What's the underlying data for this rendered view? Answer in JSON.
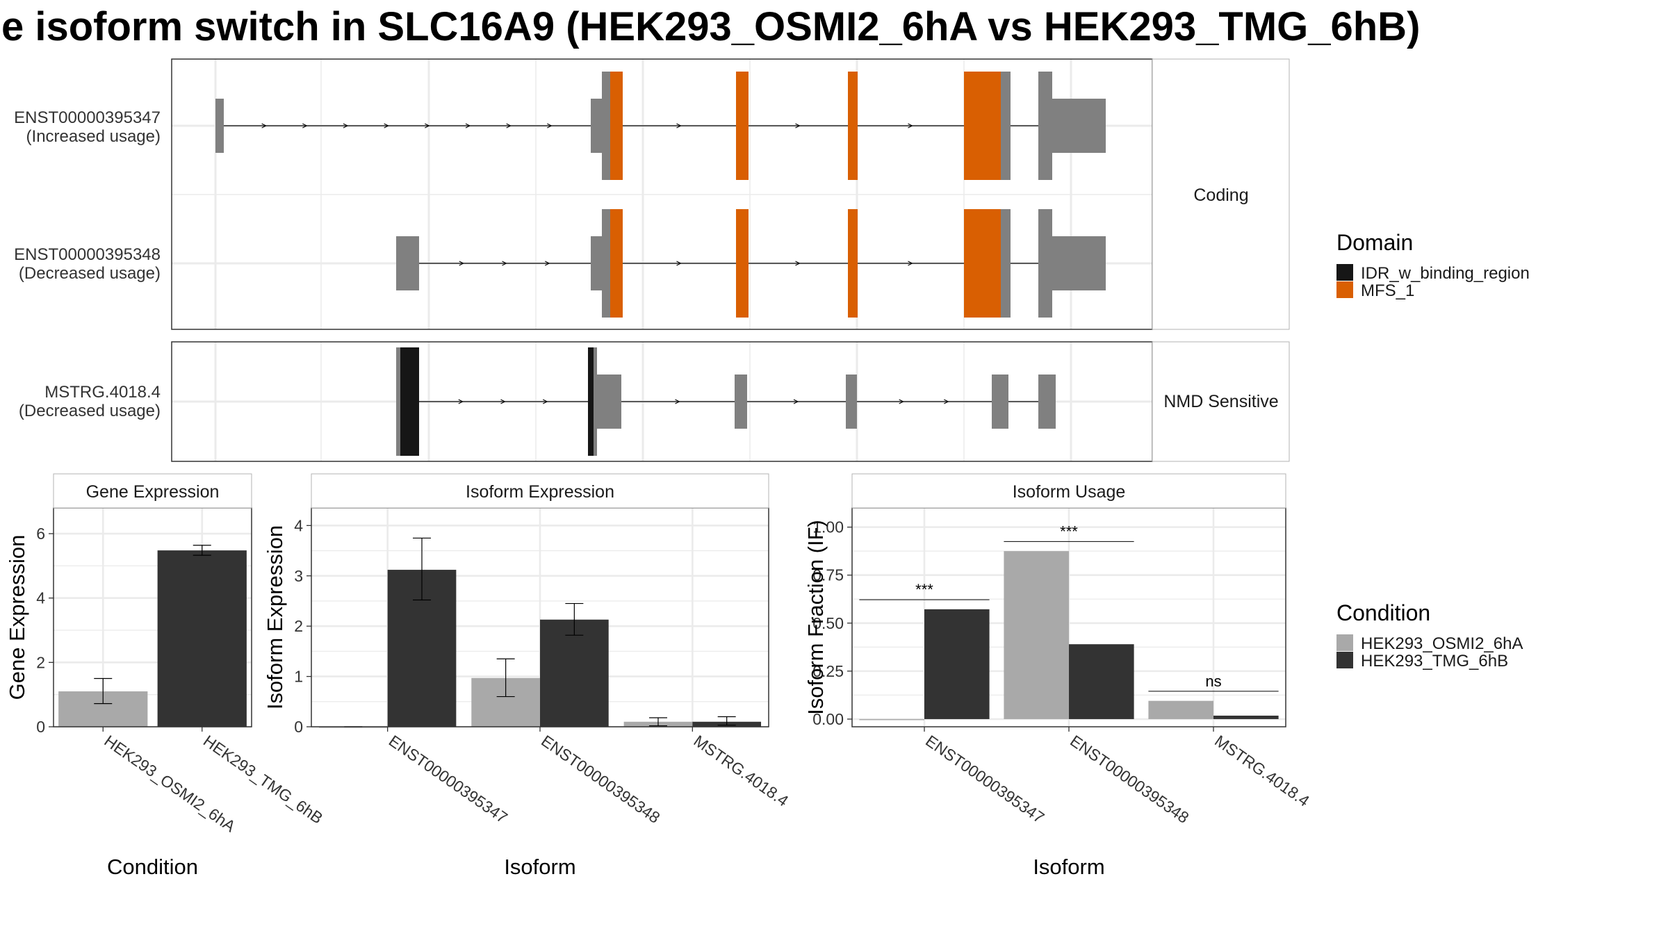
{
  "title": "e isoform switch in SLC16A9 (HEK293_OSMI2_6hA vs HEK293_TMG_6hB)",
  "colors": {
    "exon": "#808080",
    "IDR_w_binding_region": "#161616",
    "MFS_1": "#D95F02",
    "HEK293_OSMI2_6hA": "#A9A9A9",
    "HEK293_TMG_6hB": "#333333",
    "grid": "#EBEBEB",
    "panel_border": "#333333"
  },
  "transcripts": {
    "groups": [
      "Coding",
      "NMD Sensitive"
    ],
    "items": [
      {
        "id": "ENST00000395347",
        "usage": "(Increased usage)",
        "group": "Coding"
      },
      {
        "id": "ENST00000395348",
        "usage": "(Decreased usage)",
        "group": "Coding"
      },
      {
        "id": "MSTRG.4018.4",
        "usage": "(Decreased usage)",
        "group": "NMD Sensitive"
      }
    ]
  },
  "domain_legend": {
    "title": "Domain",
    "entries": [
      "IDR_w_binding_region",
      "MFS_1"
    ]
  },
  "condition_legend": {
    "title": "Condition",
    "entries": [
      "HEK293_OSMI2_6hA",
      "HEK293_TMG_6hB"
    ]
  },
  "chart_data": [
    {
      "type": "bar",
      "title": "Gene Expression",
      "xlabel": "Condition",
      "ylabel": "Gene Expression",
      "categories": [
        "HEK293_OSMI2_6hA",
        "HEK293_TMG_6hB"
      ],
      "values": [
        1.1,
        5.48
      ],
      "error": [
        [
          0.72,
          1.5
        ],
        [
          5.33,
          5.64
        ]
      ],
      "ylim": [
        0,
        6.8
      ],
      "yticks": [
        0,
        2,
        4,
        6
      ],
      "grid": true
    },
    {
      "type": "bar",
      "title": "Isoform Expression",
      "xlabel": "Isoform",
      "ylabel": "Isoform Expression",
      "categories": [
        "ENST00000395347",
        "ENST00000395348",
        "MSTRG.4018.4"
      ],
      "series": [
        {
          "name": "HEK293_OSMI2_6hA",
          "values": [
            0.0,
            0.97,
            0.1
          ],
          "error": [
            [
              0.0,
              0.0
            ],
            [
              0.6,
              1.35
            ],
            [
              0.02,
              0.18
            ]
          ]
        },
        {
          "name": "HEK293_TMG_6hB",
          "values": [
            3.12,
            2.13,
            0.1
          ],
          "error": [
            [
              2.52,
              3.75
            ],
            [
              1.82,
              2.45
            ],
            [
              0.03,
              0.2
            ]
          ]
        }
      ],
      "ylim": [
        0,
        4.35
      ],
      "yticks": [
        0,
        1,
        2,
        3,
        4
      ],
      "grid": true
    },
    {
      "type": "bar",
      "title": "Isoform Usage",
      "xlabel": "Isoform",
      "ylabel": "Isoform Fraction (IF)",
      "categories": [
        "ENST00000395347",
        "ENST00000395348",
        "MSTRG.4018.4"
      ],
      "series": [
        {
          "name": "HEK293_OSMI2_6hA",
          "values": [
            0.0,
            0.875,
            0.095
          ]
        },
        {
          "name": "HEK293_TMG_6hB",
          "values": [
            0.572,
            0.39,
            0.018
          ]
        }
      ],
      "significance": [
        "***",
        "***",
        "ns"
      ],
      "ylim": [
        -0.04,
        1.1
      ],
      "yticks": [
        0,
        0.25,
        0.5,
        0.75,
        1.0
      ],
      "ytick_labels": [
        "0.00",
        "0.25",
        "0.50",
        "0.75",
        "1.00"
      ],
      "grid": true
    }
  ]
}
